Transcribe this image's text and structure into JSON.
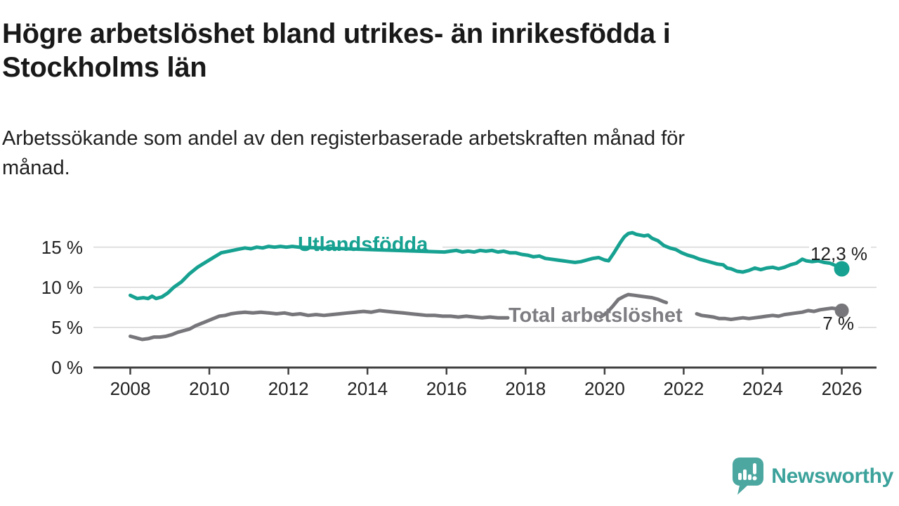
{
  "header": {
    "title_line1": "Högre arbetslöshet bland utrikes- än inrikesfödda i",
    "title_line2": "Stockholms län",
    "subtitle_line1": "Arbetssökande som andel av den registerbaserade arbetskraften månad för",
    "subtitle_line2": "månad."
  },
  "footer": {
    "brand": "Newsworthy",
    "brand_color": "#3ba29b",
    "logo_mark_color": "#4ba7a0"
  },
  "colors": {
    "grid": "#d9d9d9",
    "axis": "#404040",
    "tick_text": "#222222",
    "title_text": "#191919"
  },
  "chart_data": {
    "type": "line",
    "title": "Högre arbetslöshet bland utrikes- än inrikesfödda i Stockholms län",
    "subtitle": "Arbetssökande som andel av den registerbaserade arbetskraften månad för månad.",
    "unit": "%",
    "grid": true,
    "x_axis": {
      "ticks": [
        2008,
        2010,
        2012,
        2014,
        2016,
        2018,
        2020,
        2022,
        2024,
        2026
      ],
      "range": [
        2007.1,
        2026.9
      ]
    },
    "y_axis": {
      "ticks": [
        0,
        5,
        10,
        15
      ],
      "tick_labels": [
        "0 %",
        "5 %",
        "10 %",
        "15 %"
      ],
      "range": [
        0,
        17.5
      ]
    },
    "series": [
      {
        "name": "Utlandsfödda",
        "color": "#16a191",
        "label_color": "#16a191",
        "end_label": "12,3 %",
        "end_value": 12.3,
        "gaps": [
          [
            2012.28,
            2015.93
          ]
        ],
        "points": [
          [
            2008.0,
            9.0
          ],
          [
            2008.17,
            8.6
          ],
          [
            2008.33,
            8.7
          ],
          [
            2008.45,
            8.6
          ],
          [
            2008.55,
            8.9
          ],
          [
            2008.65,
            8.6
          ],
          [
            2008.8,
            8.8
          ],
          [
            2008.95,
            9.3
          ],
          [
            2009.1,
            10.0
          ],
          [
            2009.3,
            10.7
          ],
          [
            2009.5,
            11.7
          ],
          [
            2009.7,
            12.5
          ],
          [
            2009.9,
            13.1
          ],
          [
            2010.1,
            13.7
          ],
          [
            2010.3,
            14.3
          ],
          [
            2010.5,
            14.5
          ],
          [
            2010.7,
            14.7
          ],
          [
            2010.9,
            14.9
          ],
          [
            2011.05,
            14.8
          ],
          [
            2011.2,
            15.0
          ],
          [
            2011.35,
            14.9
          ],
          [
            2011.5,
            15.1
          ],
          [
            2011.65,
            15.0
          ],
          [
            2011.8,
            15.1
          ],
          [
            2011.95,
            15.0
          ],
          [
            2012.1,
            15.1
          ],
          [
            2012.26,
            15.0
          ],
          [
            2015.95,
            14.4
          ],
          [
            2016.1,
            14.5
          ],
          [
            2016.25,
            14.6
          ],
          [
            2016.4,
            14.4
          ],
          [
            2016.55,
            14.5
          ],
          [
            2016.7,
            14.4
          ],
          [
            2016.85,
            14.6
          ],
          [
            2017.0,
            14.5
          ],
          [
            2017.15,
            14.6
          ],
          [
            2017.3,
            14.4
          ],
          [
            2017.45,
            14.5
          ],
          [
            2017.6,
            14.3
          ],
          [
            2017.75,
            14.3
          ],
          [
            2017.9,
            14.1
          ],
          [
            2018.05,
            14.0
          ],
          [
            2018.2,
            13.8
          ],
          [
            2018.35,
            13.9
          ],
          [
            2018.5,
            13.6
          ],
          [
            2018.65,
            13.5
          ],
          [
            2018.8,
            13.4
          ],
          [
            2018.95,
            13.3
          ],
          [
            2019.1,
            13.2
          ],
          [
            2019.25,
            13.1
          ],
          [
            2019.4,
            13.2
          ],
          [
            2019.55,
            13.4
          ],
          [
            2019.7,
            13.6
          ],
          [
            2019.85,
            13.7
          ],
          [
            2020.0,
            13.4
          ],
          [
            2020.1,
            13.3
          ],
          [
            2020.25,
            14.4
          ],
          [
            2020.4,
            15.6
          ],
          [
            2020.5,
            16.3
          ],
          [
            2020.6,
            16.7
          ],
          [
            2020.7,
            16.8
          ],
          [
            2020.8,
            16.6
          ],
          [
            2020.9,
            16.5
          ],
          [
            2021.0,
            16.4
          ],
          [
            2021.1,
            16.5
          ],
          [
            2021.2,
            16.1
          ],
          [
            2021.35,
            15.8
          ],
          [
            2021.5,
            15.2
          ],
          [
            2021.65,
            14.9
          ],
          [
            2021.8,
            14.7
          ],
          [
            2021.95,
            14.3
          ],
          [
            2022.1,
            14.0
          ],
          [
            2022.25,
            13.8
          ],
          [
            2022.4,
            13.5
          ],
          [
            2022.55,
            13.3
          ],
          [
            2022.7,
            13.1
          ],
          [
            2022.85,
            12.9
          ],
          [
            2023.0,
            12.8
          ],
          [
            2023.1,
            12.4
          ],
          [
            2023.2,
            12.3
          ],
          [
            2023.35,
            12.0
          ],
          [
            2023.5,
            11.9
          ],
          [
            2023.65,
            12.1
          ],
          [
            2023.8,
            12.4
          ],
          [
            2023.95,
            12.2
          ],
          [
            2024.1,
            12.4
          ],
          [
            2024.25,
            12.5
          ],
          [
            2024.4,
            12.3
          ],
          [
            2024.55,
            12.5
          ],
          [
            2024.7,
            12.8
          ],
          [
            2024.85,
            13.0
          ],
          [
            2025.0,
            13.5
          ],
          [
            2025.1,
            13.3
          ],
          [
            2025.25,
            13.2
          ],
          [
            2025.4,
            13.3
          ],
          [
            2025.55,
            13.1
          ],
          [
            2025.7,
            13.0
          ],
          [
            2025.85,
            12.7
          ],
          [
            2026.0,
            12.3
          ]
        ]
      },
      {
        "name": "Total arbetslöshet",
        "color": "#77777b",
        "label_color": "#7d7d82",
        "end_label": "7 %",
        "end_value": 7.0,
        "gaps": [
          [
            2017.58,
            2019.88
          ],
          [
            2021.58,
            2022.32
          ]
        ],
        "points": [
          [
            2008.0,
            3.9
          ],
          [
            2008.15,
            3.7
          ],
          [
            2008.3,
            3.5
          ],
          [
            2008.45,
            3.6
          ],
          [
            2008.6,
            3.8
          ],
          [
            2008.75,
            3.8
          ],
          [
            2008.9,
            3.9
          ],
          [
            2009.05,
            4.1
          ],
          [
            2009.2,
            4.4
          ],
          [
            2009.35,
            4.6
          ],
          [
            2009.5,
            4.8
          ],
          [
            2009.65,
            5.2
          ],
          [
            2009.8,
            5.5
          ],
          [
            2009.95,
            5.8
          ],
          [
            2010.1,
            6.1
          ],
          [
            2010.25,
            6.4
          ],
          [
            2010.4,
            6.5
          ],
          [
            2010.55,
            6.7
          ],
          [
            2010.7,
            6.8
          ],
          [
            2010.9,
            6.9
          ],
          [
            2011.1,
            6.8
          ],
          [
            2011.3,
            6.9
          ],
          [
            2011.5,
            6.8
          ],
          [
            2011.7,
            6.7
          ],
          [
            2011.9,
            6.8
          ],
          [
            2012.1,
            6.6
          ],
          [
            2012.3,
            6.7
          ],
          [
            2012.5,
            6.5
          ],
          [
            2012.7,
            6.6
          ],
          [
            2012.9,
            6.5
          ],
          [
            2013.1,
            6.6
          ],
          [
            2013.3,
            6.7
          ],
          [
            2013.5,
            6.8
          ],
          [
            2013.7,
            6.9
          ],
          [
            2013.9,
            7.0
          ],
          [
            2014.1,
            6.9
          ],
          [
            2014.3,
            7.1
          ],
          [
            2014.5,
            7.0
          ],
          [
            2014.7,
            6.9
          ],
          [
            2014.9,
            6.8
          ],
          [
            2015.1,
            6.7
          ],
          [
            2015.3,
            6.6
          ],
          [
            2015.5,
            6.5
          ],
          [
            2015.7,
            6.5
          ],
          [
            2015.9,
            6.4
          ],
          [
            2016.1,
            6.4
          ],
          [
            2016.3,
            6.3
          ],
          [
            2016.5,
            6.4
          ],
          [
            2016.7,
            6.3
          ],
          [
            2016.9,
            6.2
          ],
          [
            2017.1,
            6.3
          ],
          [
            2017.3,
            6.2
          ],
          [
            2017.55,
            6.2
          ],
          [
            2018.0,
            6.1
          ],
          [
            2018.5,
            6.1
          ],
          [
            2019.0,
            6.0
          ],
          [
            2019.5,
            6.1
          ],
          [
            2019.9,
            6.3
          ],
          [
            2020.05,
            6.8
          ],
          [
            2020.2,
            7.6
          ],
          [
            2020.35,
            8.5
          ],
          [
            2020.5,
            8.9
          ],
          [
            2020.6,
            9.1
          ],
          [
            2020.75,
            9.0
          ],
          [
            2020.9,
            8.9
          ],
          [
            2021.05,
            8.8
          ],
          [
            2021.2,
            8.7
          ],
          [
            2021.35,
            8.5
          ],
          [
            2021.5,
            8.2
          ],
          [
            2021.56,
            8.1
          ],
          [
            2021.8,
            7.5
          ],
          [
            2022.1,
            7.0
          ],
          [
            2022.33,
            6.7
          ],
          [
            2022.45,
            6.5
          ],
          [
            2022.6,
            6.4
          ],
          [
            2022.75,
            6.3
          ],
          [
            2022.9,
            6.1
          ],
          [
            2023.05,
            6.1
          ],
          [
            2023.2,
            6.0
          ],
          [
            2023.35,
            6.1
          ],
          [
            2023.5,
            6.2
          ],
          [
            2023.65,
            6.1
          ],
          [
            2023.8,
            6.2
          ],
          [
            2023.95,
            6.3
          ],
          [
            2024.1,
            6.4
          ],
          [
            2024.25,
            6.5
          ],
          [
            2024.4,
            6.4
          ],
          [
            2024.55,
            6.6
          ],
          [
            2024.7,
            6.7
          ],
          [
            2024.85,
            6.8
          ],
          [
            2025.0,
            6.9
          ],
          [
            2025.15,
            7.1
          ],
          [
            2025.3,
            7.0
          ],
          [
            2025.45,
            7.2
          ],
          [
            2025.6,
            7.3
          ],
          [
            2025.75,
            7.4
          ],
          [
            2025.9,
            7.3
          ],
          [
            2026.0,
            7.1
          ]
        ]
      }
    ]
  }
}
